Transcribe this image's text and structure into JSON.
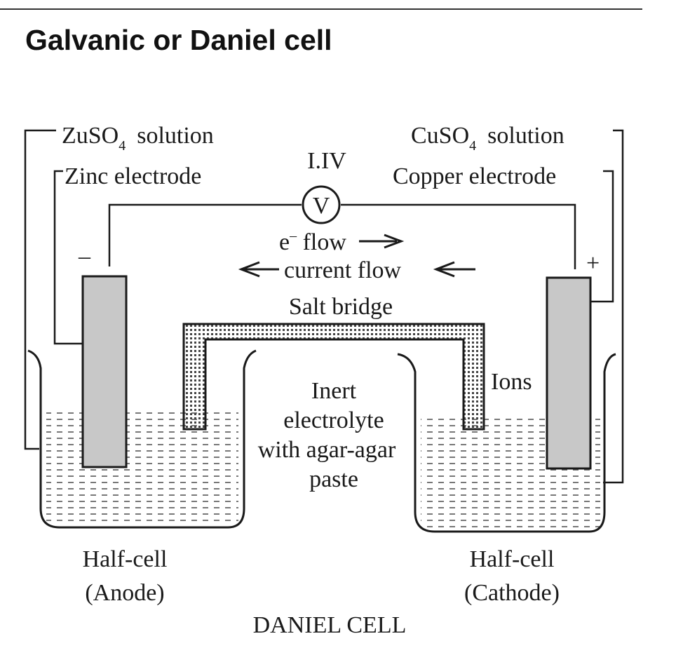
{
  "heading": "Galvanic or Daniel cell",
  "diagram": {
    "left_solution": {
      "formula": "ZuSO",
      "subscript": "4",
      "suffix": "solution"
    },
    "right_solution": {
      "formula": "CuSO",
      "subscript": "4",
      "suffix": "solution"
    },
    "zinc_electrode": "Zinc electrode",
    "copper_electrode": "Copper electrode",
    "voltmeter_reading": "I.IV",
    "voltmeter_symbol": "V",
    "negative_terminal": "–",
    "positive_terminal": "+",
    "electron_flow": {
      "base": "e",
      "superscript": "–",
      "rest": " flow"
    },
    "current_flow": "current flow",
    "salt_bridge": "Salt bridge",
    "ions": "Ions",
    "electrolyte_lines": [
      "Inert",
      "electrolyte",
      "with agar-agar",
      "paste"
    ],
    "anode_lines": [
      "Half-cell",
      "(Anode)"
    ],
    "cathode_lines": [
      "Half-cell",
      "(Cathode)"
    ],
    "caption": "DANIEL CELL"
  },
  "colors": {
    "ink": "#1a1a1a",
    "electrode": "#c8c8c8",
    "electrolyte_dash": "#555555"
  }
}
